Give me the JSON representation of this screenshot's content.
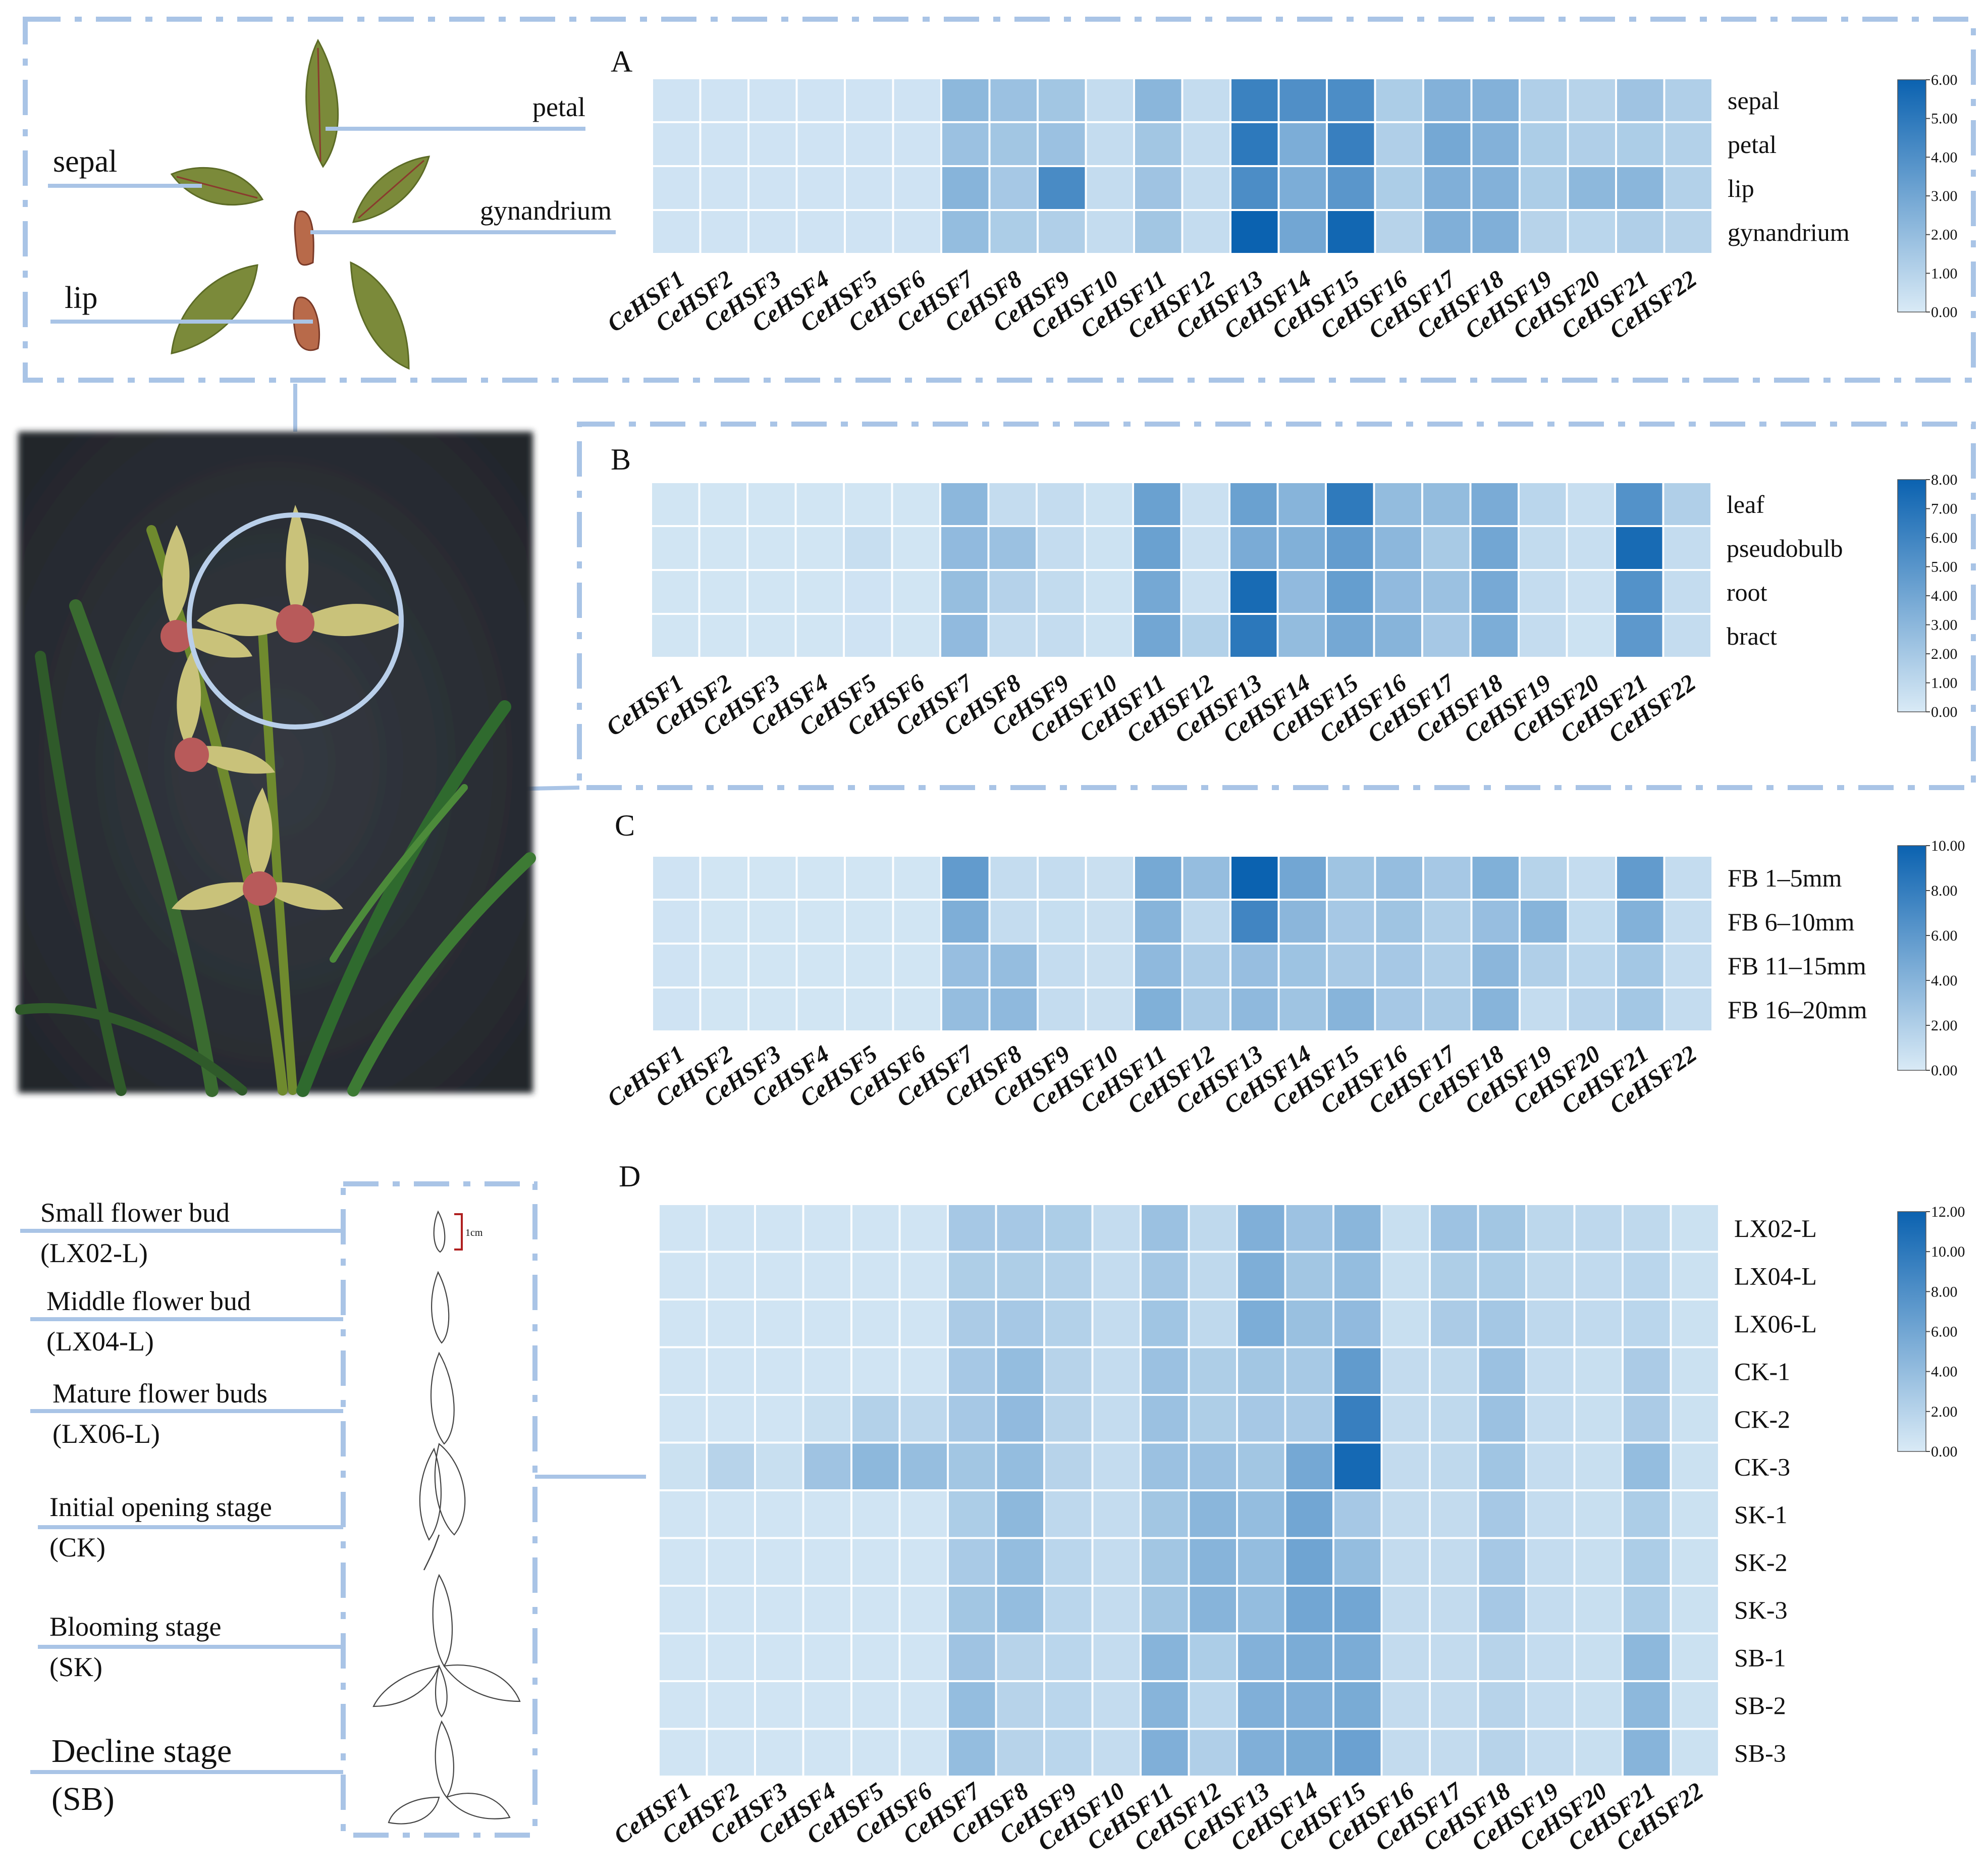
{
  "colors": {
    "low": "#d9eaf6",
    "high": "#0b62b0",
    "guide": "#a9c4e6",
    "frame": "#a9c4e6",
    "background": "#2b2f35"
  },
  "figure": {
    "panel_a_labels": {
      "petal": "petal",
      "sepal": "sepal",
      "gynandrium": "gynandrium",
      "lip": "lip"
    },
    "stages": [
      {
        "name": "Small flower bud",
        "code": "(LX02-L)"
      },
      {
        "name": "Middle flower bud",
        "code": "(LX04-L)"
      },
      {
        "name": "Mature flower buds",
        "code": "(LX06-L)"
      },
      {
        "name": "Initial opening stage",
        "code": "(CK)"
      },
      {
        "name": "Blooming stage",
        "code": "(SK)"
      },
      {
        "name": "Decline stage",
        "code": "(SB)"
      }
    ],
    "scale_label": "1cm"
  },
  "chart_data": [
    {
      "type": "heatmap",
      "panel": "A",
      "genes": [
        "CeHSF1",
        "CeHSF2",
        "CeHSF3",
        "CeHSF4",
        "CeHSF5",
        "CeHSF6",
        "CeHSF7",
        "CeHSF8",
        "CeHSF9",
        "CeHSF10",
        "CeHSF11",
        "CeHSF12",
        "CeHSF13",
        "CeHSF14",
        "CeHSF15",
        "CeHSF16",
        "CeHSF17",
        "CeHSF18",
        "CeHSF19",
        "CeHSF20",
        "CeHSF21",
        "CeHSF22"
      ],
      "rows": [
        "sepal",
        "petal",
        "lip",
        "gynandrium"
      ],
      "values": [
        [
          0.3,
          0.3,
          0.3,
          0.3,
          0.3,
          0.3,
          2.2,
          1.8,
          1.6,
          0.6,
          2.3,
          0.6,
          4.6,
          4.0,
          4.1,
          1.3,
          2.5,
          2.5,
          1.2,
          1.0,
          1.7,
          1.2
        ],
        [
          0.3,
          0.3,
          0.3,
          0.3,
          0.3,
          0.3,
          1.8,
          1.6,
          1.8,
          0.6,
          1.6,
          0.6,
          5.0,
          2.7,
          4.7,
          1.2,
          2.9,
          2.5,
          1.3,
          1.2,
          1.3,
          1.1
        ],
        [
          0.3,
          0.3,
          0.3,
          0.3,
          0.3,
          0.3,
          2.4,
          1.5,
          4.2,
          0.6,
          1.7,
          0.6,
          4.1,
          2.7,
          3.7,
          1.3,
          2.6,
          2.5,
          1.3,
          2.2,
          2.3,
          1.1
        ],
        [
          0.3,
          0.3,
          0.3,
          0.3,
          0.3,
          0.3,
          2.0,
          1.3,
          1.2,
          0.6,
          1.6,
          0.6,
          6.0,
          3.0,
          5.8,
          1.0,
          2.6,
          2.6,
          1.0,
          0.9,
          1.2,
          1.0
        ]
      ],
      "vmin": 0,
      "vmax": 6,
      "colorbar_ticks": [
        "6.00",
        "5.00",
        "4.00",
        "3.00",
        "2.00",
        "1.00",
        "0.00"
      ]
    },
    {
      "type": "heatmap",
      "panel": "B",
      "genes": [
        "CeHSF1",
        "CeHSF2",
        "CeHSF3",
        "CeHSF4",
        "CeHSF5",
        "CeHSF6",
        "CeHSF7",
        "CeHSF8",
        "CeHSF9",
        "CeHSF10",
        "CeHSF11",
        "CeHSF12",
        "CeHSF13",
        "CeHSF14",
        "CeHSF15",
        "CeHSF16",
        "CeHSF17",
        "CeHSF18",
        "CeHSF19",
        "CeHSF20",
        "CeHSF21",
        "CeHSF22"
      ],
      "rows": [
        "leaf",
        "pseudobulb",
        "root",
        "bract"
      ],
      "values": [
        [
          0.3,
          0.3,
          0.3,
          0.3,
          0.3,
          0.3,
          3.0,
          0.8,
          0.8,
          0.5,
          4.3,
          0.6,
          4.3,
          3.2,
          6.6,
          2.7,
          2.7,
          3.7,
          1.2,
          0.7,
          5.2,
          1.6
        ],
        [
          0.3,
          0.3,
          0.3,
          0.3,
          0.7,
          0.3,
          2.8,
          2.4,
          0.8,
          0.5,
          4.3,
          0.6,
          3.7,
          3.4,
          4.6,
          3.0,
          1.9,
          4.0,
          0.9,
          0.7,
          7.5,
          0.8
        ],
        [
          0.3,
          0.3,
          0.3,
          0.3,
          0.4,
          0.3,
          2.6,
          1.4,
          0.9,
          0.5,
          3.9,
          0.6,
          7.5,
          2.8,
          4.5,
          2.8,
          2.4,
          3.8,
          0.8,
          0.6,
          5.2,
          0.8
        ],
        [
          0.3,
          0.3,
          0.3,
          0.3,
          0.4,
          0.3,
          2.8,
          0.8,
          0.8,
          0.5,
          4.0,
          1.5,
          6.7,
          2.7,
          3.9,
          3.2,
          2.0,
          3.6,
          0.8,
          0.5,
          4.8,
          0.8
        ]
      ],
      "vmin": 0,
      "vmax": 8,
      "colorbar_ticks": [
        "8.00",
        "7.00",
        "6.00",
        "5.00",
        "4.00",
        "3.00",
        "2.00",
        "1.00",
        "0.00"
      ]
    },
    {
      "type": "heatmap",
      "panel": "C",
      "genes": [
        "CeHSF1",
        "CeHSF2",
        "CeHSF3",
        "CeHSF4",
        "CeHSF5",
        "CeHSF6",
        "CeHSF7",
        "CeHSF8",
        "CeHSF9",
        "CeHSF10",
        "CeHSF11",
        "CeHSF12",
        "CeHSF13",
        "CeHSF14",
        "CeHSF15",
        "CeHSF16",
        "CeHSF17",
        "CeHSF18",
        "CeHSF19",
        "CeHSF20",
        "CeHSF21",
        "CeHSF22"
      ],
      "rows": [
        "FB 1–5mm",
        "FB 6–10mm",
        "FB 11–15mm",
        "FB 16–20mm"
      ],
      "values": [
        [
          0.5,
          0.4,
          0.4,
          0.4,
          0.4,
          0.4,
          5.8,
          1.0,
          1.0,
          0.8,
          4.8,
          3.3,
          10.0,
          5.0,
          2.8,
          3.3,
          2.5,
          4.3,
          1.7,
          1.0,
          5.8,
          1.0
        ],
        [
          0.5,
          0.4,
          0.4,
          0.4,
          0.4,
          0.4,
          4.4,
          1.0,
          0.9,
          0.8,
          4.0,
          1.3,
          7.4,
          3.8,
          2.5,
          2.8,
          2.0,
          3.2,
          4.0,
          1.2,
          4.2,
          1.0
        ],
        [
          0.5,
          0.4,
          0.4,
          0.4,
          0.4,
          0.4,
          3.2,
          3.3,
          1.0,
          0.8,
          3.6,
          2.2,
          3.2,
          2.9,
          2.4,
          2.5,
          2.0,
          3.8,
          2.0,
          1.5,
          2.6,
          1.0
        ],
        [
          0.5,
          0.4,
          0.4,
          0.4,
          0.4,
          0.4,
          3.3,
          3.6,
          1.0,
          0.8,
          4.3,
          2.3,
          3.6,
          2.8,
          4.0,
          2.5,
          2.3,
          4.0,
          1.0,
          1.6,
          2.6,
          1.0
        ]
      ],
      "vmin": 0,
      "vmax": 10,
      "colorbar_ticks": [
        "10.00",
        "8.00",
        "6.00",
        "4.00",
        "2.00",
        "0.00"
      ]
    },
    {
      "type": "heatmap",
      "panel": "D",
      "genes": [
        "CeHSF1",
        "CeHSF2",
        "CeHSF3",
        "CeHSF4",
        "CeHSF5",
        "CeHSF6",
        "CeHSF7",
        "CeHSF8",
        "CeHSF9",
        "CeHSF10",
        "CeHSF11",
        "CeHSF12",
        "CeHSF13",
        "CeHSF14",
        "CeHSF15",
        "CeHSF16",
        "CeHSF17",
        "CeHSF18",
        "CeHSF19",
        "CeHSF20",
        "CeHSF21",
        "CeHSF22"
      ],
      "rows": [
        "LX02-L",
        "LX04-L",
        "LX06-L",
        "CK-1",
        "CK-2",
        "CK-3",
        "SK-1",
        "SK-2",
        "SK-3",
        "SB-1",
        "SB-2",
        "SB-3"
      ],
      "values": [
        [
          0.5,
          0.5,
          0.5,
          0.5,
          0.5,
          0.5,
          3.0,
          3.0,
          2.6,
          1.2,
          3.6,
          1.5,
          5.2,
          3.5,
          4.6,
          1.0,
          3.5,
          3.2,
          1.7,
          1.6,
          1.5,
          0.8
        ],
        [
          0.5,
          0.5,
          0.5,
          0.5,
          0.5,
          0.5,
          2.5,
          2.5,
          2.2,
          1.2,
          3.1,
          1.5,
          5.3,
          3.2,
          4.0,
          1.0,
          2.5,
          2.6,
          1.5,
          1.4,
          1.8,
          0.8
        ],
        [
          0.5,
          0.5,
          0.5,
          0.5,
          0.5,
          0.5,
          2.7,
          3.0,
          2.2,
          1.2,
          3.3,
          1.5,
          5.4,
          3.7,
          4.2,
          1.0,
          2.7,
          3.1,
          1.6,
          1.4,
          1.8,
          0.8
        ],
        [
          0.5,
          0.5,
          0.5,
          0.5,
          0.5,
          0.5,
          3.0,
          4.0,
          2.0,
          1.2,
          3.6,
          2.5,
          3.2,
          2.9,
          7.0,
          1.3,
          1.5,
          3.6,
          1.2,
          1.0,
          2.7,
          0.8
        ],
        [
          0.5,
          0.5,
          0.5,
          1.0,
          2.2,
          1.6,
          3.0,
          4.2,
          2.0,
          1.2,
          3.6,
          2.5,
          3.0,
          2.8,
          9.4,
          1.3,
          1.5,
          3.6,
          1.2,
          1.0,
          2.7,
          0.8
        ],
        [
          0.8,
          2.0,
          1.0,
          3.4,
          4.4,
          3.9,
          3.2,
          4.0,
          2.0,
          1.2,
          3.6,
          3.6,
          3.2,
          5.8,
          11.4,
          1.3,
          1.5,
          3.3,
          1.2,
          1.0,
          4.0,
          0.8
        ],
        [
          0.5,
          0.5,
          0.5,
          0.5,
          0.5,
          0.5,
          2.6,
          4.4,
          1.6,
          1.2,
          3.2,
          4.6,
          4.0,
          6.0,
          3.0,
          1.3,
          1.3,
          3.0,
          1.2,
          1.0,
          2.6,
          0.8
        ],
        [
          0.5,
          0.5,
          0.5,
          0.5,
          0.5,
          0.5,
          2.8,
          4.0,
          1.8,
          1.2,
          3.2,
          4.8,
          4.0,
          6.2,
          4.0,
          1.3,
          1.3,
          3.0,
          1.2,
          1.0,
          2.6,
          0.8
        ],
        [
          0.5,
          0.5,
          0.5,
          0.5,
          0.5,
          0.5,
          3.2,
          4.0,
          1.8,
          1.2,
          3.2,
          4.8,
          4.0,
          6.0,
          6.0,
          1.3,
          1.3,
          3.0,
          1.2,
          1.0,
          2.6,
          0.8
        ],
        [
          0.5,
          0.5,
          0.5,
          0.5,
          0.5,
          0.5,
          3.4,
          2.0,
          1.8,
          1.2,
          4.8,
          2.6,
          5.0,
          5.5,
          5.5,
          1.3,
          1.3,
          2.0,
          1.2,
          1.0,
          4.4,
          0.8
        ],
        [
          0.5,
          0.5,
          0.5,
          0.5,
          0.5,
          0.5,
          4.0,
          2.0,
          1.8,
          1.2,
          4.8,
          1.8,
          5.2,
          5.2,
          5.6,
          1.3,
          1.3,
          2.0,
          1.2,
          1.0,
          4.4,
          0.8
        ],
        [
          0.5,
          0.5,
          0.5,
          0.5,
          0.5,
          0.5,
          4.0,
          2.0,
          1.8,
          1.2,
          5.2,
          2.4,
          5.2,
          5.6,
          6.4,
          1.3,
          1.3,
          2.0,
          1.2,
          1.0,
          4.8,
          0.8
        ]
      ],
      "vmin": 0,
      "vmax": 12,
      "colorbar_ticks": [
        "12.00",
        "10.00",
        "8.00",
        "6.00",
        "4.00",
        "2.00",
        "0.00"
      ]
    }
  ]
}
